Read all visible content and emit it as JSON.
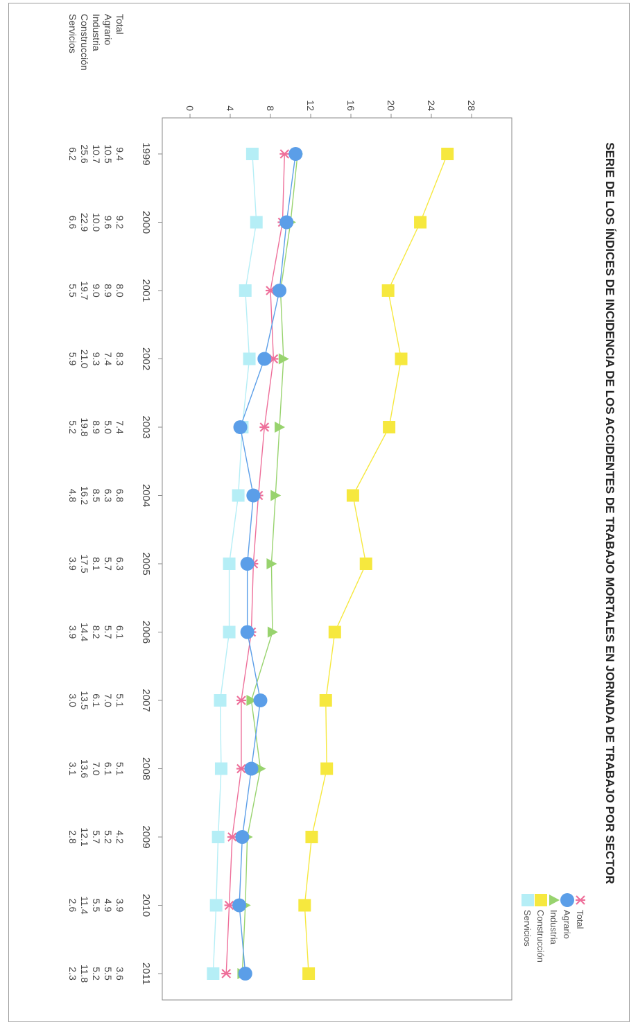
{
  "chart_data": {
    "type": "line",
    "title": "SERIE DE LOS ÍNDICES DE INCIDENCIA DE LOS ACCIDENTES DE TRABAJO MORTALES EN JORNADA DE TRABAJO POR SECTOR",
    "x": [
      "1999",
      "2000",
      "2001",
      "2002",
      "2003",
      "2004",
      "2005",
      "2006",
      "2007",
      "2008",
      "2009",
      "2010",
      "2011"
    ],
    "ylim": [
      0,
      28
    ],
    "yticks": [
      "0",
      "4",
      "8",
      "12",
      "16",
      "20",
      "24",
      "28"
    ],
    "grid": false,
    "legend_position": "right",
    "series": [
      {
        "name": "Total",
        "color": "#ee6f9a",
        "marker": "star",
        "values": [
          9.4,
          9.2,
          8.0,
          8.3,
          7.4,
          6.8,
          6.3,
          6.1,
          5.1,
          5.1,
          4.2,
          3.9,
          3.6
        ],
        "labels": [
          "9.4",
          "9.2",
          "8.0",
          "8.3",
          "7.4",
          "6.8",
          "6.3",
          "6.1",
          "5.1",
          "5.1",
          "4.2",
          "3.9",
          "3.6"
        ]
      },
      {
        "name": "Agrario",
        "color": "#5b9ee8",
        "marker": "circle",
        "values": [
          10.5,
          9.6,
          8.9,
          7.4,
          5.0,
          6.3,
          5.7,
          5.7,
          7.0,
          6.1,
          5.2,
          4.9,
          5.5
        ],
        "labels": [
          "10.5",
          "9.6",
          "8.9",
          "7.4",
          "5.0",
          "6.3",
          "5.7",
          "5.7",
          "7.0",
          "6.1",
          "5.2",
          "4.9",
          "5.5"
        ]
      },
      {
        "name": "Industria",
        "color": "#98d36e",
        "marker": "triangle",
        "values": [
          10.7,
          10.0,
          9.0,
          9.3,
          8.9,
          8.5,
          8.1,
          8.2,
          6.1,
          7.0,
          5.7,
          5.5,
          5.2
        ],
        "labels": [
          "10.7",
          "10.0",
          "9.0",
          "9.3",
          "8.9",
          "8.5",
          "8.1",
          "8.2",
          "6.1",
          "7.0",
          "5.7",
          "5.5",
          "5.2"
        ]
      },
      {
        "name": "Construcción",
        "color": "#f6e83e",
        "marker": "square",
        "values": [
          25.6,
          22.9,
          19.7,
          21.0,
          19.8,
          16.2,
          17.5,
          14.4,
          13.5,
          13.6,
          12.1,
          11.4,
          11.8
        ],
        "labels": [
          "25.6",
          "22.9",
          "19.7",
          "21.0",
          "19.8",
          "16.2",
          "17.5",
          "14.4",
          "13.5",
          "13.6",
          "12.1",
          "11.4",
          "11.8"
        ]
      },
      {
        "name": "Servicios",
        "color": "#b5eef6",
        "marker": "square",
        "values": [
          6.2,
          6.6,
          5.5,
          5.9,
          5.2,
          4.8,
          3.9,
          3.9,
          3.0,
          3.1,
          2.8,
          2.6,
          2.3
        ],
        "labels": [
          "6.2",
          "6.6",
          "5.5",
          "5.9",
          "5.2",
          "4.8",
          "3.9",
          "3.9",
          "3.0",
          "3.1",
          "2.8",
          "2.6",
          "2.3"
        ]
      }
    ]
  }
}
